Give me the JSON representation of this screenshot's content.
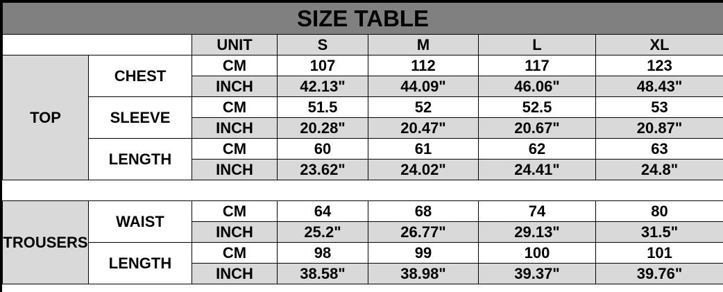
{
  "title": "SIZE TABLE",
  "header": {
    "unit": "UNIT",
    "sizes": [
      "S",
      "M",
      "L",
      "XL"
    ]
  },
  "groups": [
    {
      "name": "TOP",
      "measures": [
        {
          "name": "CHEST",
          "cm": [
            "107",
            "112",
            "117",
            "123"
          ],
          "inch": [
            "42.13\"",
            "44.09\"",
            "46.06\"",
            "48.43\""
          ]
        },
        {
          "name": "SLEEVE",
          "cm": [
            "51.5",
            "52",
            "52.5",
            "53"
          ],
          "inch": [
            "20.28\"",
            "20.47\"",
            "20.67\"",
            "20.87\""
          ]
        },
        {
          "name": "LENGTH",
          "cm": [
            "60",
            "61",
            "62",
            "63"
          ],
          "inch": [
            "23.62\"",
            "24.02\"",
            "24.41\"",
            "24.8\""
          ]
        }
      ]
    },
    {
      "name": "TROUSERS",
      "measures": [
        {
          "name": "WAIST",
          "cm": [
            "64",
            "68",
            "74",
            "80"
          ],
          "inch": [
            "25.2\"",
            "26.77\"",
            "29.13\"",
            "31.5\""
          ]
        },
        {
          "name": "LENGTH",
          "cm": [
            "98",
            "99",
            "100",
            "101"
          ],
          "inch": [
            "38.58\"",
            "38.98\"",
            "39.37\"",
            "39.76\""
          ]
        }
      ]
    }
  ],
  "units": {
    "cm": "CM",
    "inch": "INCH"
  },
  "colors": {
    "title_bg": "#808080",
    "shade": "#d9d9d9"
  }
}
